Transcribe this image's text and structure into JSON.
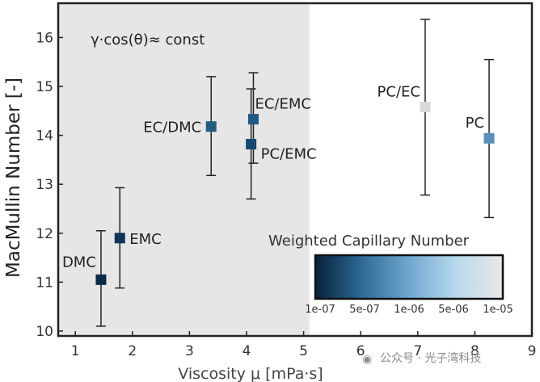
{
  "chart_data": {
    "type": "scatter",
    "title": "",
    "xlabel": "Viscosity μ [mPa·s]",
    "ylabel": "MacMullin Number [-]",
    "xlim": [
      0.7,
      9
    ],
    "ylim": [
      9.9,
      16.7
    ],
    "xticks": [
      1,
      2,
      3,
      4,
      5,
      6,
      7,
      8,
      9
    ],
    "yticks": [
      10,
      11,
      12,
      13,
      14,
      15,
      16
    ],
    "shaded_region": {
      "x_from": 0.7,
      "x_to": 5.1,
      "color": "#e6e6e6"
    },
    "annotation": "γ·cos(θ)≈ const",
    "points": [
      {
        "name": "DMC",
        "x": 1.45,
        "y": 11.05,
        "err_low": 10.1,
        "err_high": 12.05,
        "color": "#0b2a45"
      },
      {
        "name": "EMC",
        "x": 1.78,
        "y": 11.9,
        "err_low": 10.88,
        "err_high": 12.93,
        "color": "#0e3555"
      },
      {
        "name": "EC/DMC",
        "x": 3.38,
        "y": 14.18,
        "err_low": 13.18,
        "err_high": 15.2,
        "color": "#245c7f"
      },
      {
        "name": "EC/EMC",
        "x": 4.12,
        "y": 14.33,
        "err_low": 13.43,
        "err_high": 15.28,
        "color": "#1f5a86"
      },
      {
        "name": "PC/EMC",
        "x": 4.08,
        "y": 13.82,
        "err_low": 12.7,
        "err_high": 14.95,
        "color": "#17486e"
      },
      {
        "name": "PC/EC",
        "x": 7.13,
        "y": 14.58,
        "err_low": 12.78,
        "err_high": 16.37,
        "color": "#d9d9d9"
      },
      {
        "name": "PC",
        "x": 8.25,
        "y": 13.94,
        "err_low": 12.32,
        "err_high": 15.55,
        "color": "#5b8fbb"
      }
    ],
    "colorbar": {
      "title": "Weighted Capillary Number",
      "tick_labels": [
        "1e-07",
        "5e-07",
        "1e-06",
        "5e-06",
        "1e-05"
      ],
      "colors": [
        "#06213a",
        "#2e6b95",
        "#6fa7cf",
        "#b7d8ec",
        "#e9e9e9"
      ]
    }
  },
  "watermark": "公众号 · 光子湾科技"
}
